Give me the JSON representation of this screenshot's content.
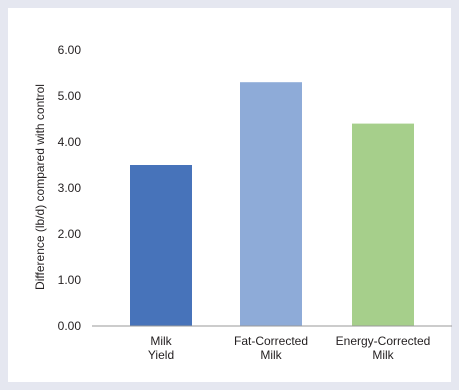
{
  "chart_data": {
    "type": "bar",
    "categories": [
      [
        "Milk",
        "Yield"
      ],
      [
        "Fat-Corrected",
        "Milk"
      ],
      [
        "Energy-Corrected",
        "Milk"
      ]
    ],
    "values": [
      3.5,
      5.3,
      4.4
    ],
    "colors": [
      "#4773ba",
      "#8eabd8",
      "#a6cf8b"
    ],
    "ylabel": "Difference (lb/d) compared with control",
    "ylim": [
      0,
      6
    ],
    "yticks": [
      "0.00",
      "1.00",
      "2.00",
      "3.00",
      "4.00",
      "5.00",
      "6.00"
    ],
    "grid": false,
    "legend": "none"
  }
}
